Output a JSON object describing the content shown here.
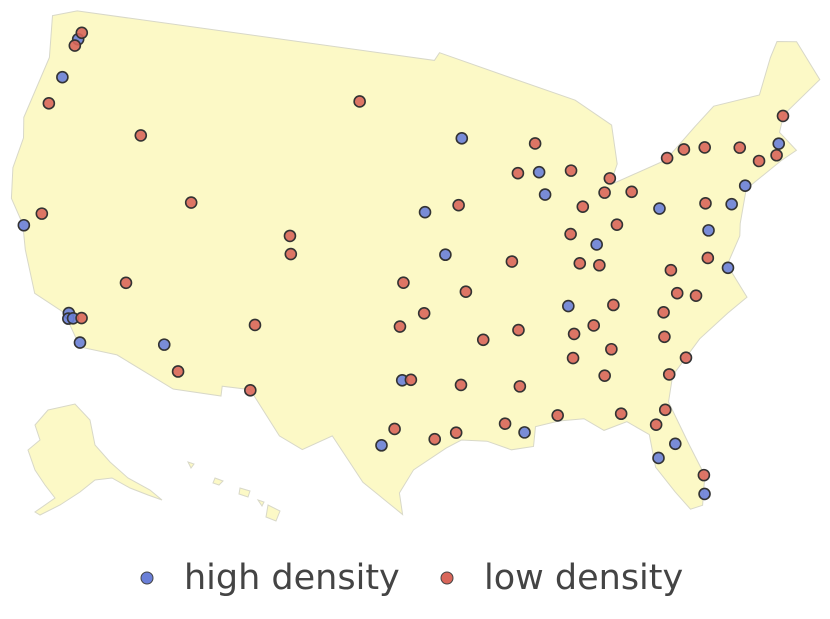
{
  "chart_data": {
    "type": "scatter",
    "legend": "bottom",
    "series": [
      {
        "name": "high density",
        "color": "#6a7fd8",
        "x": [
          -122.33,
          -122.68,
          -122.42,
          -118.24,
          -118.19,
          -117.91,
          -117.16,
          -112.07,
          -93.27,
          -95.93,
          -94.58,
          -87.63,
          -87.91,
          -84.51,
          -86.78,
          -80.0,
          -77.04,
          -76.29,
          -75.17,
          -74.0,
          -71.06,
          -98.49,
          -97.33,
          -90.07,
          -82.46,
          -81.38,
          -80.19
        ],
        "y": [
          47.61,
          45.52,
          37.77,
          34.05,
          33.77,
          33.84,
          32.72,
          33.45,
          44.98,
          41.26,
          39.1,
          41.88,
          43.04,
          39.1,
          36.16,
          40.44,
          38.9,
          36.85,
          39.95,
          40.71,
          42.36,
          29.42,
          32.75,
          29.95,
          27.95,
          28.54,
          25.76
        ]
      },
      {
        "name": "low density",
        "color": "#d9665a",
        "x": [
          -122.44,
          -122.2,
          -123.09,
          -121.49,
          -117.4,
          -115.14,
          -110.97,
          -116.2,
          -111.89,
          -104.99,
          -104.82,
          -106.65,
          -106.49,
          -100.78,
          -97.34,
          -97.52,
          -95.99,
          -96.8,
          -97.74,
          -95.37,
          -94.1,
          -93.62,
          -90.2,
          -93.29,
          -92.29,
          -90.05,
          -93.75,
          -91.19,
          -90.18,
          -88.04,
          -86.8,
          -86.59,
          -84.39,
          -84.99,
          -89.4,
          -88.02,
          -85.67,
          -83.05,
          -83.54,
          -86.16,
          -85.76,
          -84.5,
          -83.0,
          -81.69,
          -78.88,
          -77.61,
          -76.15,
          -73.76,
          -72.68,
          -71.41,
          -70.26,
          -76.88,
          -77.44,
          -79.94,
          -83.92,
          -80.84,
          -79.79,
          -78.64,
          -81.03,
          -79.93,
          -81.1,
          -81.66,
          -84.28,
          -82.32,
          -80.05,
          -85.31,
          -85.14
        ],
        "y": [
          47.25,
          47.98,
          44.05,
          38.58,
          33.95,
          36.17,
          32.22,
          43.62,
          40.76,
          39.74,
          38.83,
          35.08,
          31.76,
          46.81,
          37.69,
          35.47,
          36.15,
          32.78,
          30.27,
          29.76,
          30.08,
          41.59,
          38.63,
          37.21,
          34.75,
          35.15,
          32.5,
          30.45,
          32.3,
          30.69,
          33.52,
          34.73,
          33.75,
          32.46,
          43.07,
          44.51,
          42.96,
          42.33,
          41.65,
          39.77,
          38.25,
          38.04,
          39.96,
          41.5,
          42.89,
          43.16,
          43.05,
          42.65,
          41.76,
          41.82,
          43.66,
          40.27,
          37.54,
          37.27,
          35.96,
          35.23,
          36.07,
          35.78,
          34.0,
          32.78,
          32.08,
          30.33,
          30.44,
          29.65,
          26.72,
          35.05,
          41.08
        ]
      }
    ]
  }
}
